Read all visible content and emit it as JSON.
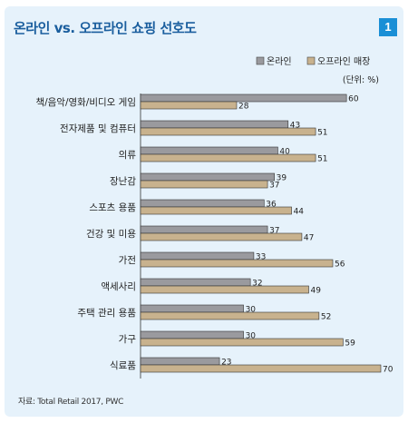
{
  "header": {
    "title": "온라인 vs. 오프라인 쇼핑 선호도",
    "badge": "1",
    "unit": "(단위: %)",
    "source": "자료: Total Retail 2017, PWC"
  },
  "colors": {
    "online": "#9a9a9e",
    "offline": "#c8b28e",
    "title": "#1a5e9e",
    "badge": "#1a8fd6",
    "background": "#e6f2fb"
  },
  "chart_data": {
    "type": "bar",
    "orientation": "horizontal",
    "categories": [
      "책/음악/영화/비디오 게임",
      "전자제품 및 컴퓨터",
      "의류",
      "장난감",
      "스포츠 용품",
      "건강 및 미용",
      "가전",
      "액세사리",
      "주택 관리 용품",
      "가구",
      "식료품"
    ],
    "series": [
      {
        "name": "온라인",
        "values": [
          60,
          43,
          40,
          39,
          36,
          37,
          33,
          32,
          30,
          30,
          23
        ]
      },
      {
        "name": "오프라인 매장",
        "values": [
          28,
          51,
          51,
          37,
          44,
          47,
          56,
          49,
          52,
          59,
          70
        ]
      }
    ],
    "legend_position": "top-right",
    "grid": false,
    "xlim": [
      0,
      70
    ]
  }
}
